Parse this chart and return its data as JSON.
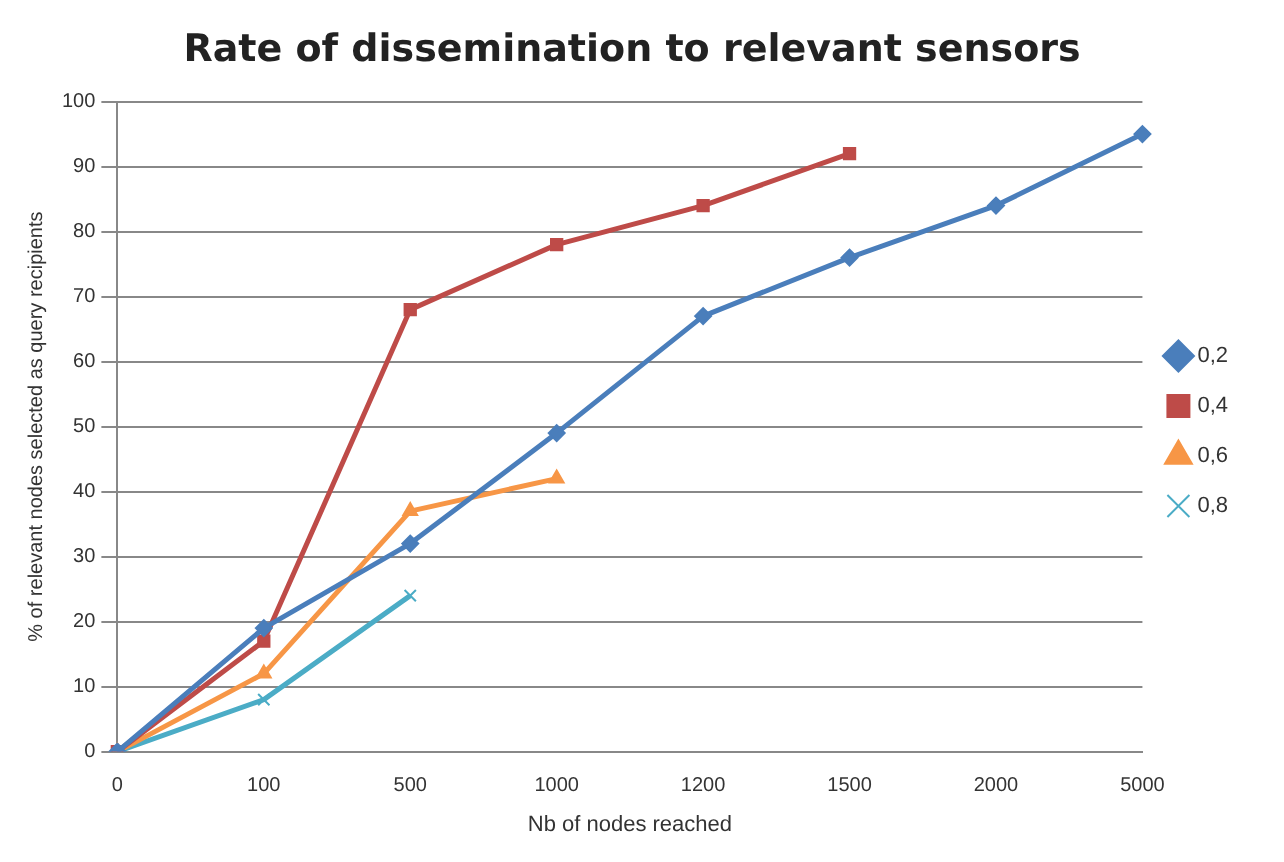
{
  "chart_data": {
    "type": "line",
    "title": "Rate of dissemination to relevant sensors",
    "xlabel": "Nb of nodes reached",
    "ylabel": "% of relevant nodes selected as query recipients",
    "categories": [
      "0",
      "100",
      "500",
      "1000",
      "1200",
      "1500",
      "2000",
      "5000"
    ],
    "series": [
      {
        "name": "0,2",
        "color": "#4a7ebb",
        "marker": "diamond",
        "values": [
          0,
          19,
          32,
          49,
          67,
          76,
          84,
          95
        ]
      },
      {
        "name": "0,4",
        "color": "#be4b48",
        "marker": "square",
        "values": [
          0,
          17,
          68,
          78,
          84,
          92,
          null,
          null
        ]
      },
      {
        "name": "0,6",
        "color": "#f79646",
        "marker": "triangle",
        "values": [
          0,
          12,
          37,
          42,
          null,
          null,
          null,
          null
        ]
      },
      {
        "name": "0,8",
        "color": "#4bacc6",
        "marker": "cross",
        "values": [
          0,
          8,
          24,
          null,
          null,
          null,
          null,
          null
        ]
      }
    ],
    "ylim": [
      0,
      100
    ],
    "yticks": [
      0,
      10,
      20,
      30,
      40,
      50,
      60,
      70,
      80,
      90,
      100
    ],
    "grid": "y",
    "legend": "right"
  }
}
